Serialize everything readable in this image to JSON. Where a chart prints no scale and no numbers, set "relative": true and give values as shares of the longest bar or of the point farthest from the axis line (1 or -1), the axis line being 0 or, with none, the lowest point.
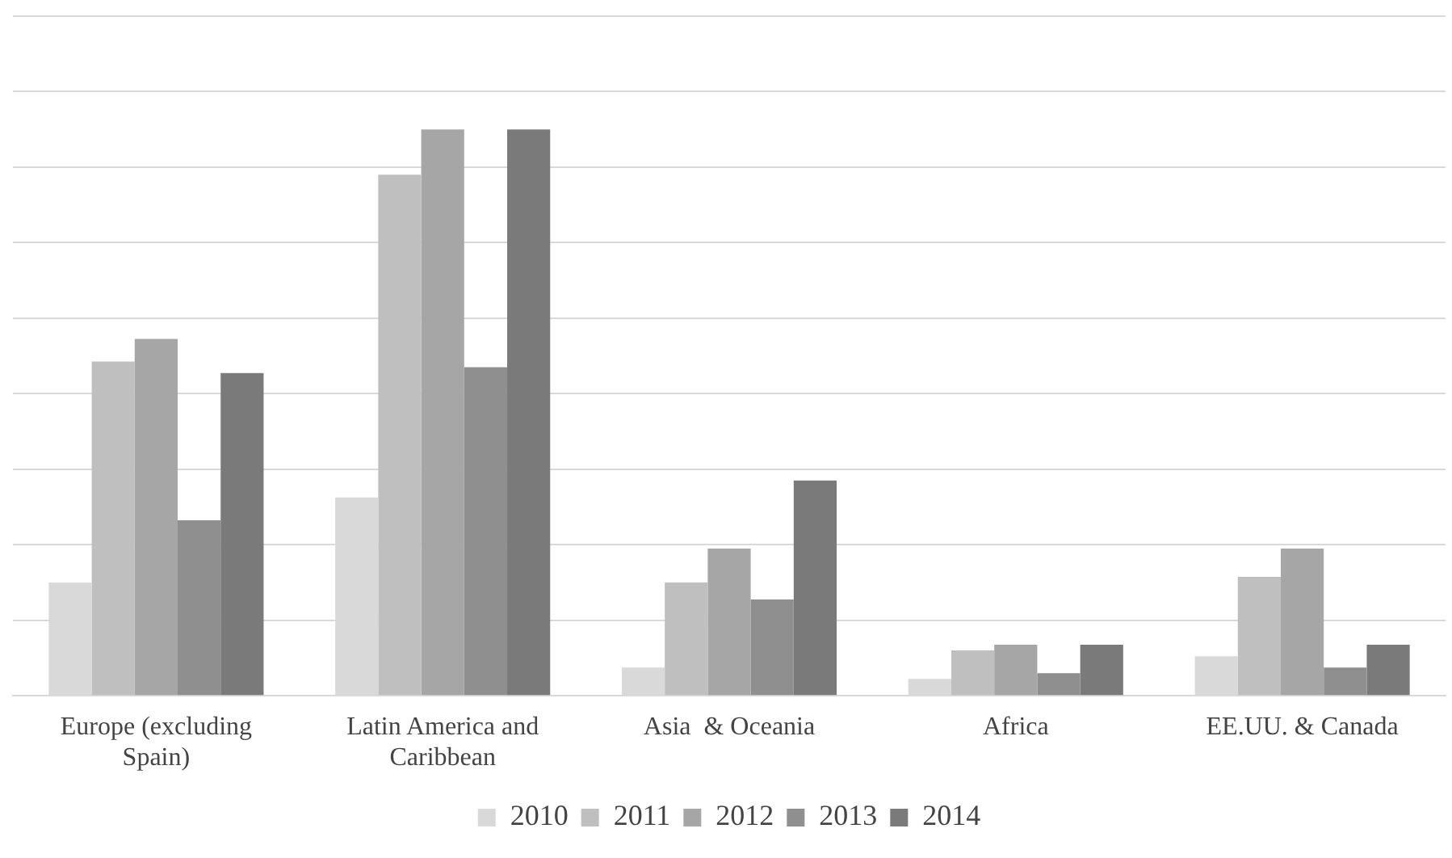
{
  "chart_data": {
    "type": "bar",
    "relative": true,
    "grid": "y",
    "legend": "bottom",
    "categories": [
      "Europe (excluding Spain)",
      "Latin America and Caribbean",
      "Asia  & Oceania",
      "Africa",
      "EE.UU. & Canada"
    ],
    "series": [
      {
        "name": "2010",
        "color": "#d9d9d9",
        "values": [
          0.2,
          0.35,
          0.05,
          0.03,
          0.07
        ]
      },
      {
        "name": "2011",
        "color": "#bfbfbf",
        "values": [
          0.59,
          0.92,
          0.2,
          0.08,
          0.21
        ]
      },
      {
        "name": "2012",
        "color": "#a6a6a6",
        "values": [
          0.63,
          1,
          0.26,
          0.09,
          0.26
        ]
      },
      {
        "name": "2013",
        "color": "#8f8f8f",
        "values": [
          0.31,
          0.58,
          0.17,
          0.04,
          0.05
        ]
      },
      {
        "name": "2014",
        "color": "#7a7a7a",
        "values": [
          0.57,
          1,
          0.38,
          0.09,
          0.09
        ]
      }
    ]
  }
}
